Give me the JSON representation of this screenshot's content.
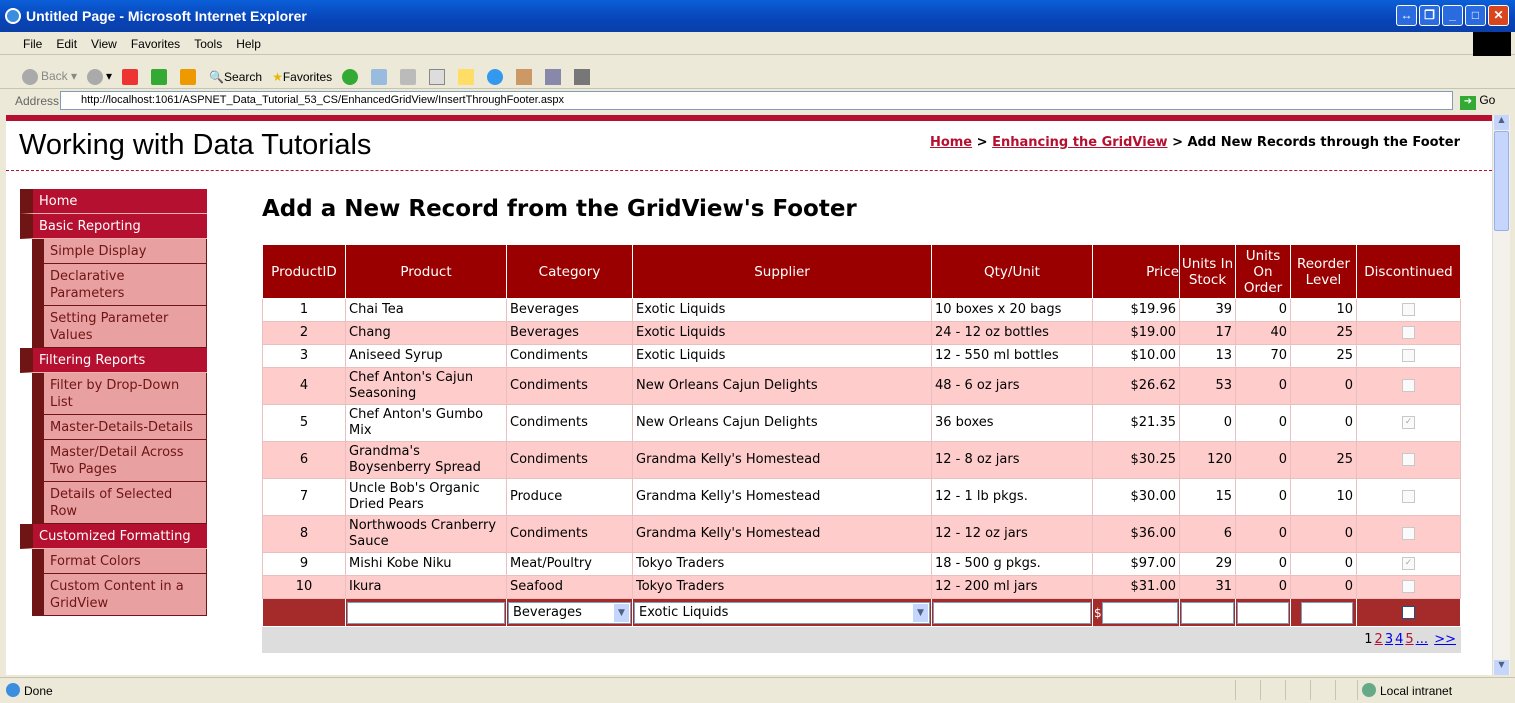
{
  "window": {
    "title": "Untitled Page - Microsoft Internet Explorer"
  },
  "menu": [
    "File",
    "Edit",
    "View",
    "Favorites",
    "Tools",
    "Help"
  ],
  "toolbar": {
    "back": "Back",
    "search": "Search",
    "favorites": "Favorites"
  },
  "address": {
    "label": "Address",
    "url": "http://localhost:1061/ASPNET_Data_Tutorial_53_CS/EnhancedGridView/InsertThroughFooter.aspx",
    "go": "Go"
  },
  "site": {
    "title": "Working with Data Tutorials"
  },
  "breadcrumb": {
    "home": "Home",
    "section": "Enhancing the GridView",
    "current": "Add New Records through the Footer",
    "sep": ">"
  },
  "sidebar": [
    {
      "label": "Home",
      "type": "header"
    },
    {
      "label": "Basic Reporting",
      "type": "header"
    },
    {
      "label": "Simple Display",
      "type": "item"
    },
    {
      "label": "Declarative Parameters",
      "type": "item"
    },
    {
      "label": "Setting Parameter Values",
      "type": "item"
    },
    {
      "label": "Filtering Reports",
      "type": "header"
    },
    {
      "label": "Filter by Drop-Down List",
      "type": "item"
    },
    {
      "label": "Master-Details-Details",
      "type": "item"
    },
    {
      "label": "Master/Detail Across Two Pages",
      "type": "item"
    },
    {
      "label": "Details of Selected Row",
      "type": "item"
    },
    {
      "label": "Customized Formatting",
      "type": "header"
    },
    {
      "label": "Format Colors",
      "type": "item"
    },
    {
      "label": "Custom Content in a GridView",
      "type": "item"
    }
  ],
  "main": {
    "heading": "Add a New Record from the GridView's Footer"
  },
  "grid": {
    "columns": [
      "ProductID",
      "Product",
      "Category",
      "Supplier",
      "Qty/Unit",
      "Price",
      "Units In Stock",
      "Units On Order",
      "Reorder Level",
      "Discontinued"
    ],
    "rows": [
      [
        "1",
        "Chai Tea",
        "Beverages",
        "Exotic Liquids",
        "10 boxes x 20 bags",
        "$19.96",
        "39",
        "0",
        "10",
        false
      ],
      [
        "2",
        "Chang",
        "Beverages",
        "Exotic Liquids",
        "24 - 12 oz bottles",
        "$19.00",
        "17",
        "40",
        "25",
        false
      ],
      [
        "3",
        "Aniseed Syrup",
        "Condiments",
        "Exotic Liquids",
        "12 - 550 ml bottles",
        "$10.00",
        "13",
        "70",
        "25",
        false
      ],
      [
        "4",
        "Chef Anton's Cajun Seasoning",
        "Condiments",
        "New Orleans Cajun Delights",
        "48 - 6 oz jars",
        "$26.62",
        "53",
        "0",
        "0",
        false
      ],
      [
        "5",
        "Chef Anton's Gumbo Mix",
        "Condiments",
        "New Orleans Cajun Delights",
        "36 boxes",
        "$21.35",
        "0",
        "0",
        "0",
        true
      ],
      [
        "6",
        "Grandma's Boysenberry Spread",
        "Condiments",
        "Grandma Kelly's Homestead",
        "12 - 8 oz jars",
        "$30.25",
        "120",
        "0",
        "25",
        false
      ],
      [
        "7",
        "Uncle Bob's Organic Dried Pears",
        "Produce",
        "Grandma Kelly's Homestead",
        "12 - 1 lb pkgs.",
        "$30.00",
        "15",
        "0",
        "10",
        false
      ],
      [
        "8",
        "Northwoods Cranberry Sauce",
        "Condiments",
        "Grandma Kelly's Homestead",
        "12 - 12 oz jars",
        "$36.00",
        "6",
        "0",
        "0",
        false
      ],
      [
        "9",
        "Mishi Kobe Niku",
        "Meat/Poultry",
        "Tokyo Traders",
        "18 - 500 g pkgs.",
        "$97.00",
        "29",
        "0",
        "0",
        true
      ],
      [
        "10",
        "Ikura",
        "Seafood",
        "Tokyo Traders",
        "12 - 200 ml jars",
        "$31.00",
        "31",
        "0",
        "0",
        false
      ]
    ],
    "footer": {
      "category": "Beverages",
      "supplier": "Exotic Liquids",
      "price_prefix": "$"
    },
    "pager": {
      "current": "1",
      "pages": [
        "2",
        "3",
        "4",
        "5",
        "..."
      ],
      "next": ">>"
    }
  },
  "status": {
    "text": "Done",
    "zone": "Local intranet"
  },
  "colors": {
    "header": "#9b0000",
    "alt_row": "#ffcccc",
    "accent": "#b5102f",
    "footer": "#a52a2a"
  }
}
